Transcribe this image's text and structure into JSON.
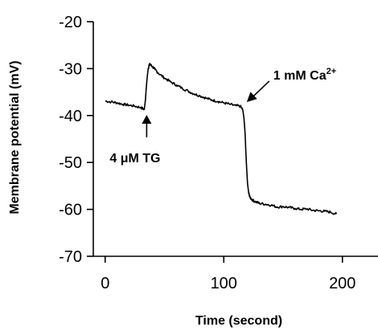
{
  "chart_data": {
    "type": "line",
    "xlabel": "Time (second)",
    "ylabel": "Membrane potential (mV)",
    "xlim": [
      -10,
      230
    ],
    "ylim": [
      -70,
      -20
    ],
    "xticks": [
      0,
      100,
      200
    ],
    "yticks": [
      -20,
      -30,
      -40,
      -50,
      -60,
      -70
    ],
    "grid": false,
    "series": [
      {
        "x": [
          0,
          5,
          10,
          15,
          20,
          25,
          30,
          33,
          34,
          35,
          36,
          37,
          38,
          40,
          42,
          45,
          50,
          55,
          60,
          65,
          70,
          75,
          80,
          85,
          90,
          95,
          100,
          105,
          110,
          114,
          116,
          117,
          118,
          119,
          120,
          121,
          122,
          124,
          127,
          130,
          135,
          140,
          145,
          150,
          155,
          160,
          165,
          170,
          175,
          180,
          185,
          190,
          195
        ],
        "y": [
          -36.9,
          -37.1,
          -37.3,
          -37.6,
          -37.8,
          -38.0,
          -38.3,
          -38.7,
          -36.5,
          -33.0,
          -30.5,
          -29.2,
          -29.1,
          -29.6,
          -30.2,
          -31.0,
          -32.0,
          -32.8,
          -33.5,
          -34.2,
          -34.8,
          -35.4,
          -35.8,
          -36.3,
          -36.7,
          -37.0,
          -37.3,
          -37.6,
          -37.9,
          -38.0,
          -38.8,
          -40.5,
          -44.0,
          -50.0,
          -54.5,
          -56.5,
          -57.4,
          -58.0,
          -58.4,
          -58.7,
          -58.9,
          -59.1,
          -59.5,
          -59.4,
          -59.6,
          -59.8,
          -60.0,
          -59.9,
          -60.2,
          -60.3,
          -60.4,
          -60.6,
          -61.0
        ]
      }
    ],
    "annotations": [
      {
        "text": "4 μM TG",
        "x": 35,
        "y": -38.5
      },
      {
        "text": "1 mM Ca",
        "superscript": "2+",
        "x": 118,
        "y": -37.8
      }
    ]
  }
}
